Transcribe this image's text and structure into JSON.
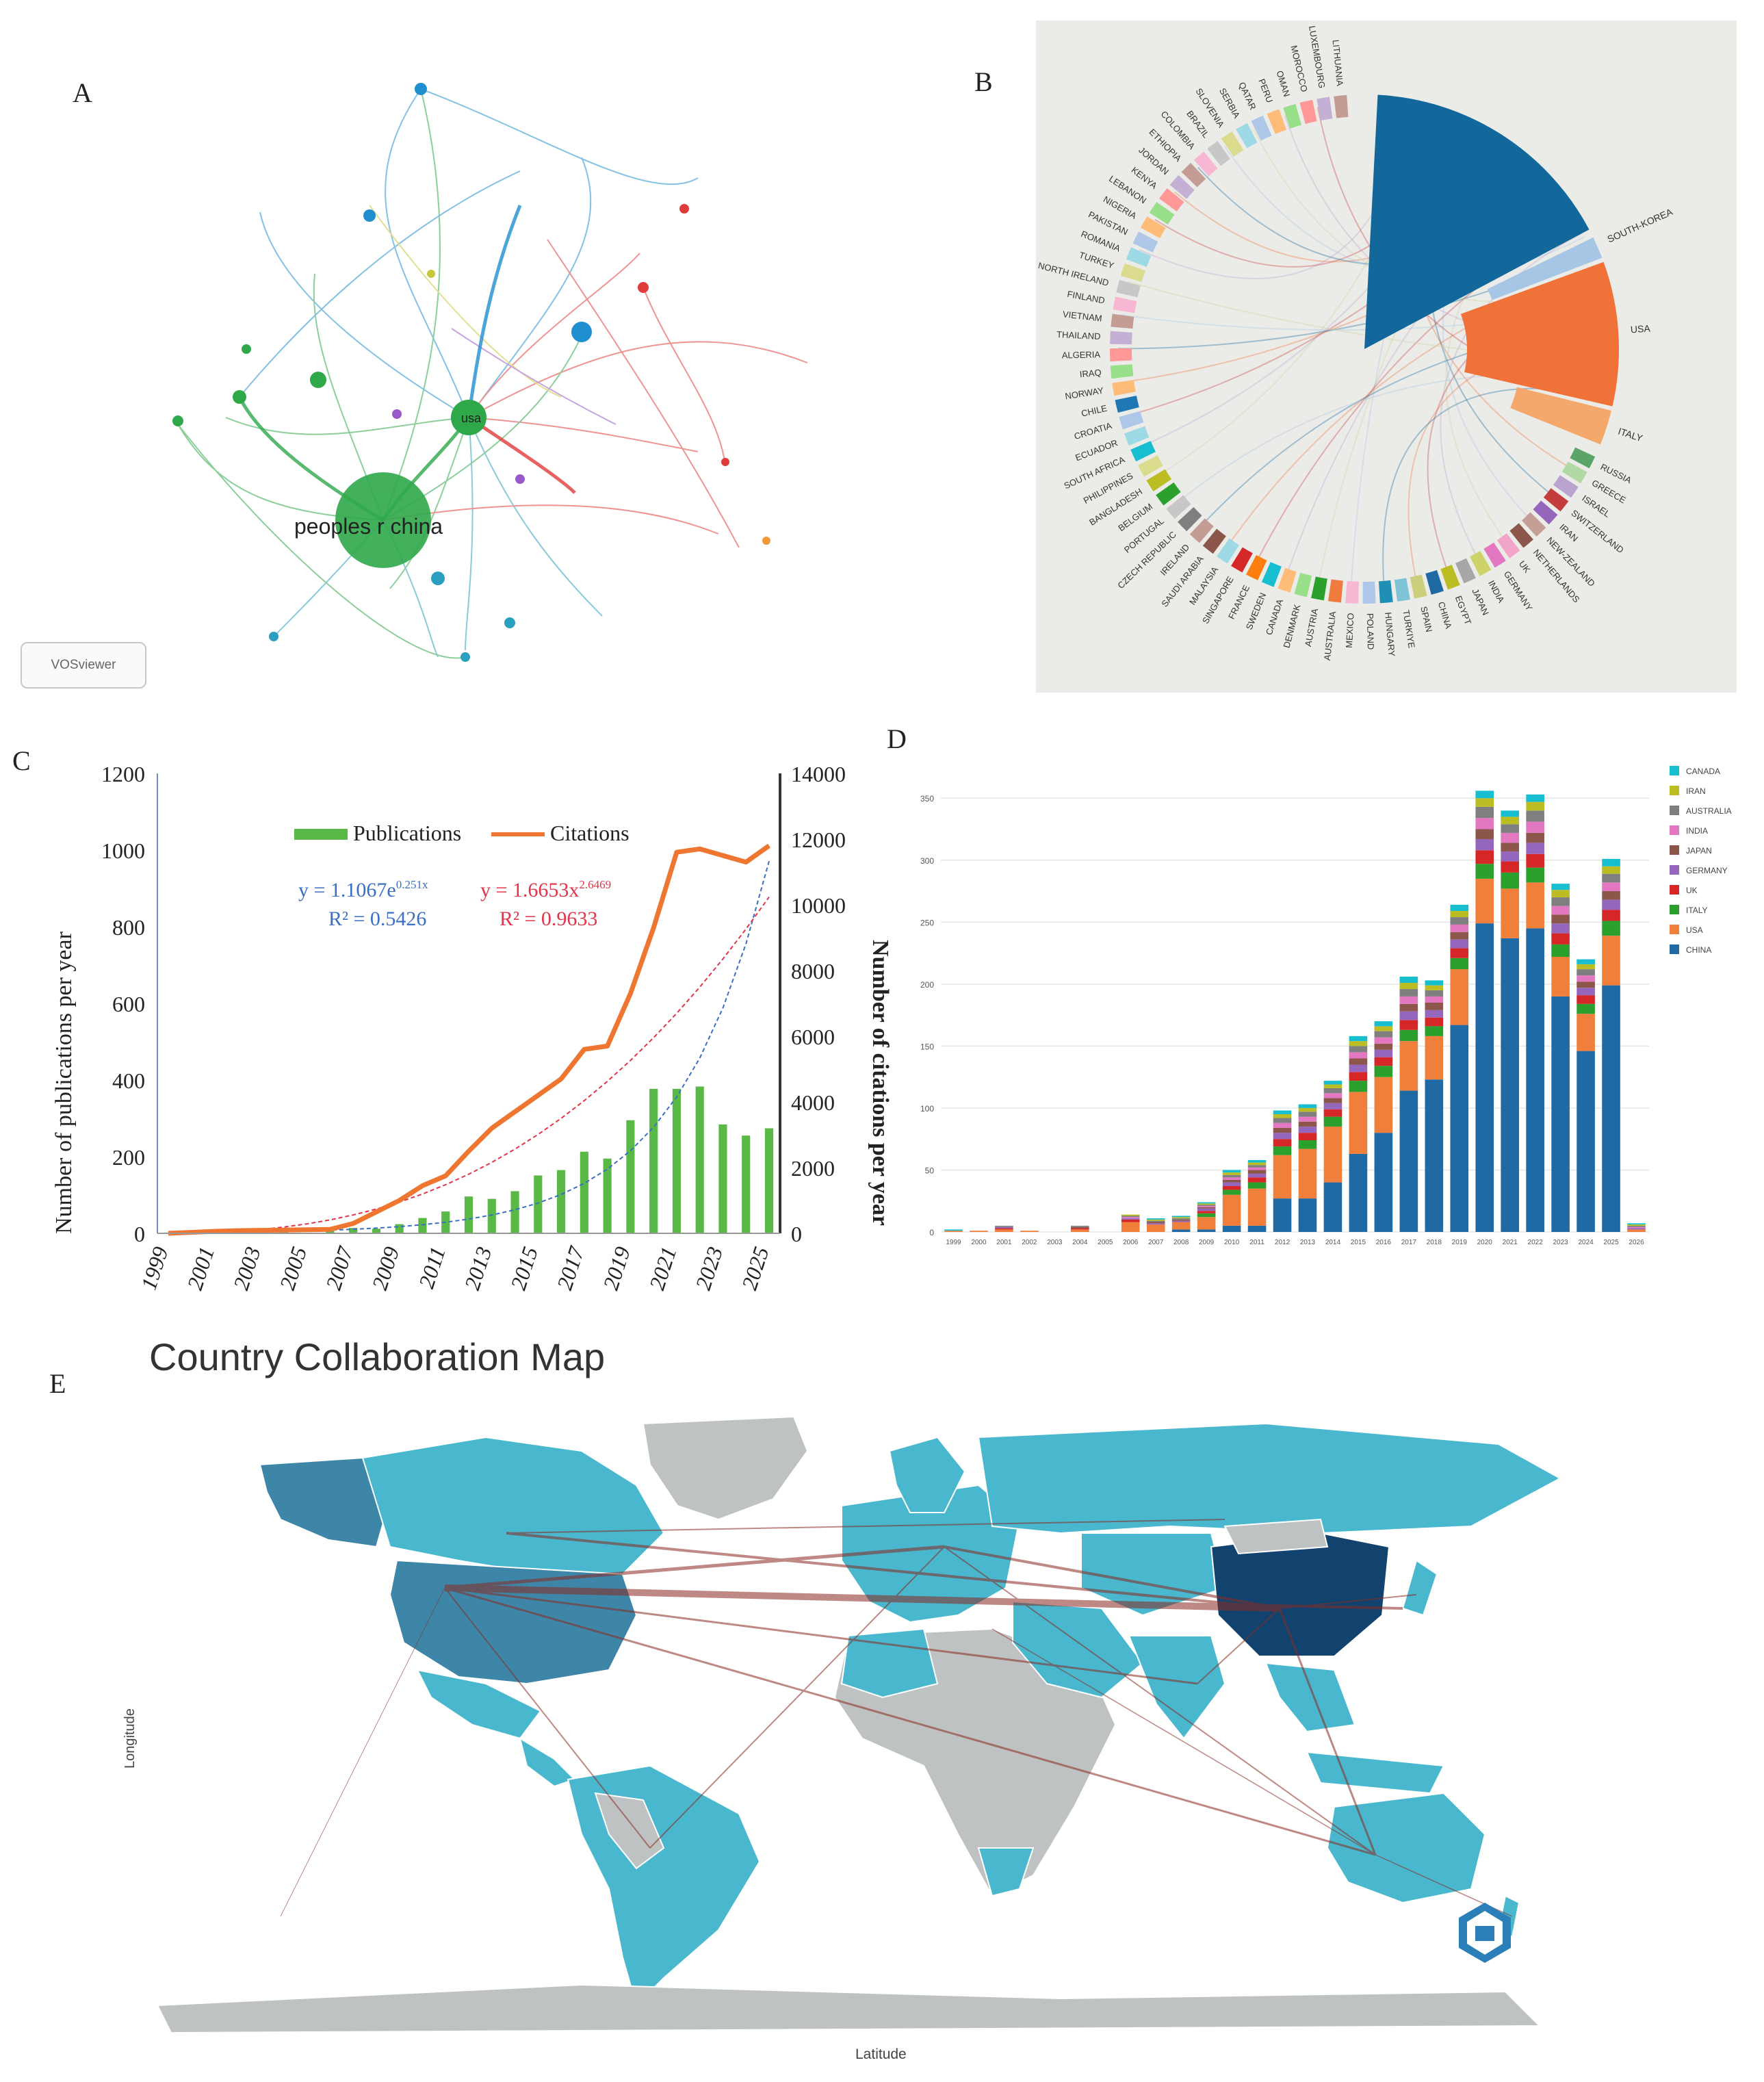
{
  "panel_labels": {
    "a": "A",
    "b": "B",
    "c": "C",
    "d": "D",
    "e": "E"
  },
  "network": {
    "main_label": "peoples r china",
    "secondary_label": "usa",
    "badge": "VOSviewer"
  },
  "chord": {
    "countries": [
      "SOUTH-KOREA",
      "USA",
      "ITALY",
      "RUSSIA",
      "GREECE",
      "ISRAEL",
      "SWITZERLAND",
      "IRAN",
      "NEW-ZEALAND",
      "NETHERLANDS",
      "UK",
      "GERMANY",
      "INDIA",
      "JAPAN",
      "EGYPT",
      "CHINA",
      "SPAIN",
      "TURKIYE",
      "HUNGARY",
      "POLAND",
      "MEXICO",
      "AUSTRALIA",
      "AUSTRIA",
      "DENMARK",
      "CANADA",
      "SWEDEN",
      "FRANCE",
      "SINGAPORE",
      "MALAYSIA",
      "SAUDI ARABIA",
      "IRELAND",
      "CZECH REPUBLIC",
      "PORTUGAL",
      "BELGIUM",
      "BANGLADESH",
      "PHILIPPINES",
      "SOUTH AFRICA",
      "ECUADOR",
      "CROATIA",
      "CHILE",
      "NORWAY",
      "IRAQ",
      "ALGERIA",
      "THAILAND",
      "VIETNAM",
      "FINLAND",
      "NORTH IRELAND",
      "TURKEY",
      "ROMANIA",
      "PAKISTAN",
      "NIGERIA",
      "LEBANON",
      "KENYA",
      "JORDAN",
      "ETHIOPIA",
      "COLOMBIA",
      "BRAZIL",
      "SLOVENIA",
      "SERBIA",
      "QATAR",
      "PERU",
      "OMAN",
      "MOROCCO",
      "LUXEMBOURG",
      "LITHUANIA"
    ]
  },
  "chart_data": [
    {
      "type": "bar",
      "panel": "C",
      "categories": [
        "1999",
        "2000",
        "2001",
        "2002",
        "2003",
        "2004",
        "2005",
        "2006",
        "2007",
        "2008",
        "2009",
        "2010",
        "2011",
        "2012",
        "2013",
        "2014",
        "2015",
        "2016",
        "2017",
        "2018",
        "2019",
        "2020",
        "2021",
        "2022",
        "2023",
        "2024",
        "2025"
      ],
      "x_tick_labels": [
        "1999",
        "2001",
        "2003",
        "2005",
        "2007",
        "2009",
        "2011",
        "2013",
        "2015",
        "2017",
        "2019",
        "2021",
        "2023",
        "2025"
      ],
      "series": [
        {
          "name": "Publications",
          "axis": "left",
          "chart": "bar",
          "color": "#5ab946",
          "values": [
            2,
            1,
            4,
            2,
            1,
            6,
            1,
            10,
            14,
            12,
            24,
            40,
            57,
            96,
            90,
            110,
            151,
            165,
            213,
            195,
            295,
            377,
            377,
            383,
            284,
            255,
            274
          ]
        },
        {
          "name": "Citations",
          "axis": "right",
          "chart": "line",
          "color": "#ee7630",
          "values": [
            0,
            30,
            60,
            80,
            90,
            100,
            110,
            120,
            300,
            650,
            1000,
            1450,
            1750,
            2500,
            3200,
            3700,
            4200,
            4700,
            5600,
            5700,
            7300,
            9300,
            11600,
            11700,
            11500,
            11300,
            11800
          ]
        }
      ],
      "fits": [
        {
          "equation_base": "y = 1.1067e",
          "equation_sup": "0.251x",
          "r2": "R² = 0.5426",
          "color": "#3a6fc4",
          "applies_to": "Publications"
        },
        {
          "equation_base": "y = 1.6653x",
          "equation_sup": "2.6469",
          "r2": "R² = 0.9633",
          "color": "#e2344a",
          "applies_to": "Citations"
        }
      ],
      "ylabel": "Number of publications per year",
      "y2label": "Number of citations per year",
      "ylim": [
        0,
        1200
      ],
      "y2lim": [
        0,
        14000
      ],
      "yticks": [
        "0",
        "200",
        "400",
        "600",
        "800",
        "1000",
        "1200"
      ],
      "y2ticks": [
        "0",
        "2000",
        "4000",
        "6000",
        "8000",
        "10000",
        "12000",
        "14000"
      ],
      "legend": "top-center"
    },
    {
      "type": "bar",
      "panel": "D",
      "stacked": true,
      "categories": [
        "1999",
        "2000",
        "2001",
        "2002",
        "2003",
        "2004",
        "2005",
        "2006",
        "2007",
        "2008",
        "2009",
        "2010",
        "2011",
        "2012",
        "2013",
        "2014",
        "2015",
        "2016",
        "2017",
        "2018",
        "2019",
        "2020",
        "2021",
        "2022",
        "2023",
        "2024",
        "2025",
        "2026"
      ],
      "ylim": [
        0,
        370
      ],
      "yticks": [
        "0",
        "50",
        "100",
        "150",
        "200",
        "250",
        "300",
        "350"
      ],
      "series": [
        {
          "name": "CHINA",
          "color": "#1f6aa5",
          "values": [
            0,
            0,
            0,
            0,
            0,
            0,
            0,
            0,
            0,
            2,
            2,
            5,
            5,
            27,
            27,
            40,
            63,
            80,
            114,
            123,
            167,
            249,
            237,
            245,
            190,
            146,
            199,
            0
          ]
        },
        {
          "name": "USA",
          "color": "#f07f3c",
          "values": [
            1,
            1,
            2,
            1,
            0,
            2,
            0,
            8,
            6,
            6,
            10,
            25,
            30,
            35,
            40,
            45,
            50,
            45,
            40,
            35,
            45,
            36,
            40,
            37,
            32,
            30,
            40,
            2
          ]
        },
        {
          "name": "ITALY",
          "color": "#2ca02c",
          "values": [
            0,
            0,
            0,
            0,
            0,
            0,
            0,
            0,
            0,
            0,
            3,
            4,
            5,
            7,
            7,
            8,
            9,
            9,
            9,
            8,
            9,
            12,
            13,
            12,
            10,
            8,
            12,
            0
          ]
        },
        {
          "name": "UK",
          "color": "#d62728",
          "values": [
            0,
            0,
            1,
            0,
            0,
            1,
            0,
            2,
            0,
            0,
            2,
            3,
            4,
            6,
            6,
            6,
            7,
            7,
            8,
            7,
            8,
            11,
            9,
            11,
            9,
            7,
            9,
            0
          ]
        },
        {
          "name": "GERMANY",
          "color": "#9467bd",
          "values": [
            0,
            0,
            1,
            0,
            0,
            0,
            0,
            1,
            1,
            1,
            2,
            3,
            3,
            5,
            5,
            5,
            6,
            6,
            7,
            6,
            7,
            9,
            8,
            9,
            8,
            6,
            8,
            1
          ]
        },
        {
          "name": "JAPAN",
          "color": "#8c564b",
          "values": [
            0,
            0,
            0,
            0,
            0,
            1,
            0,
            0,
            1,
            1,
            1,
            2,
            3,
            4,
            4,
            4,
            5,
            5,
            6,
            6,
            6,
            8,
            7,
            8,
            7,
            5,
            7,
            0
          ]
        },
        {
          "name": "INDIA",
          "color": "#e377c2",
          "values": [
            0,
            0,
            0,
            0,
            0,
            0,
            0,
            1,
            0,
            0,
            1,
            2,
            2,
            4,
            4,
            4,
            5,
            5,
            6,
            5,
            6,
            9,
            8,
            9,
            7,
            5,
            7,
            1
          ]
        },
        {
          "name": "AUSTRALIA",
          "color": "#7f7f7f",
          "values": [
            0,
            0,
            1,
            0,
            0,
            1,
            0,
            1,
            1,
            1,
            1,
            2,
            2,
            4,
            4,
            4,
            5,
            5,
            6,
            5,
            6,
            9,
            7,
            9,
            7,
            5,
            7,
            1
          ]
        },
        {
          "name": "IRAN",
          "color": "#bcbd22",
          "values": [
            0,
            0,
            0,
            0,
            0,
            0,
            0,
            1,
            1,
            1,
            1,
            2,
            2,
            3,
            3,
            3,
            4,
            4,
            5,
            4,
            5,
            7,
            6,
            7,
            6,
            4,
            6,
            1
          ]
        },
        {
          "name": "CANADA",
          "color": "#17becf",
          "values": [
            1,
            0,
            0,
            0,
            0,
            0,
            0,
            0,
            1,
            1,
            1,
            2,
            2,
            3,
            3,
            3,
            4,
            4,
            5,
            4,
            5,
            6,
            5,
            6,
            5,
            4,
            6,
            1
          ]
        }
      ],
      "legend": "top-right"
    }
  ],
  "map": {
    "title": "Country Collaboration Map",
    "ylabel": "Longitude",
    "xlabel": "Latitude"
  }
}
